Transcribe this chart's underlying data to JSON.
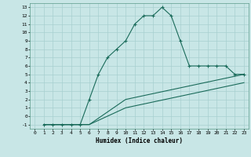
{
  "xlabel": "Humidex (Indice chaleur)",
  "ylabel": "",
  "bg_color": "#c8e6e6",
  "grid_color": "#a8d0d0",
  "line_color": "#1a6b5a",
  "xlim": [
    -0.5,
    23.5
  ],
  "ylim": [
    -1.5,
    13.5
  ],
  "xticks": [
    0,
    1,
    2,
    3,
    4,
    5,
    6,
    7,
    8,
    9,
    10,
    11,
    12,
    13,
    14,
    15,
    16,
    17,
    18,
    19,
    20,
    21,
    22,
    23
  ],
  "yticks": [
    -1,
    0,
    1,
    2,
    3,
    4,
    5,
    6,
    7,
    8,
    9,
    10,
    11,
    12,
    13
  ],
  "line1_x": [
    1,
    2,
    3,
    4,
    5,
    6,
    7,
    8,
    9,
    10,
    11,
    12,
    13,
    14,
    15,
    16,
    17,
    18,
    19,
    20,
    21,
    22,
    23
  ],
  "line1_y": [
    -1,
    -1,
    -1,
    -1,
    -1,
    2,
    5,
    7,
    8,
    9,
    11,
    12,
    12,
    13,
    12,
    9,
    6,
    6,
    6,
    6,
    6,
    5,
    5
  ],
  "line2_x": [
    1,
    2,
    3,
    4,
    5,
    6,
    10,
    23
  ],
  "line2_y": [
    -1,
    -1,
    -1,
    -1,
    -1,
    -1,
    2,
    5
  ],
  "line3_x": [
    1,
    2,
    3,
    4,
    5,
    6,
    10,
    23
  ],
  "line3_y": [
    -1,
    -1,
    -1,
    -1,
    -1,
    -1,
    1,
    4
  ]
}
